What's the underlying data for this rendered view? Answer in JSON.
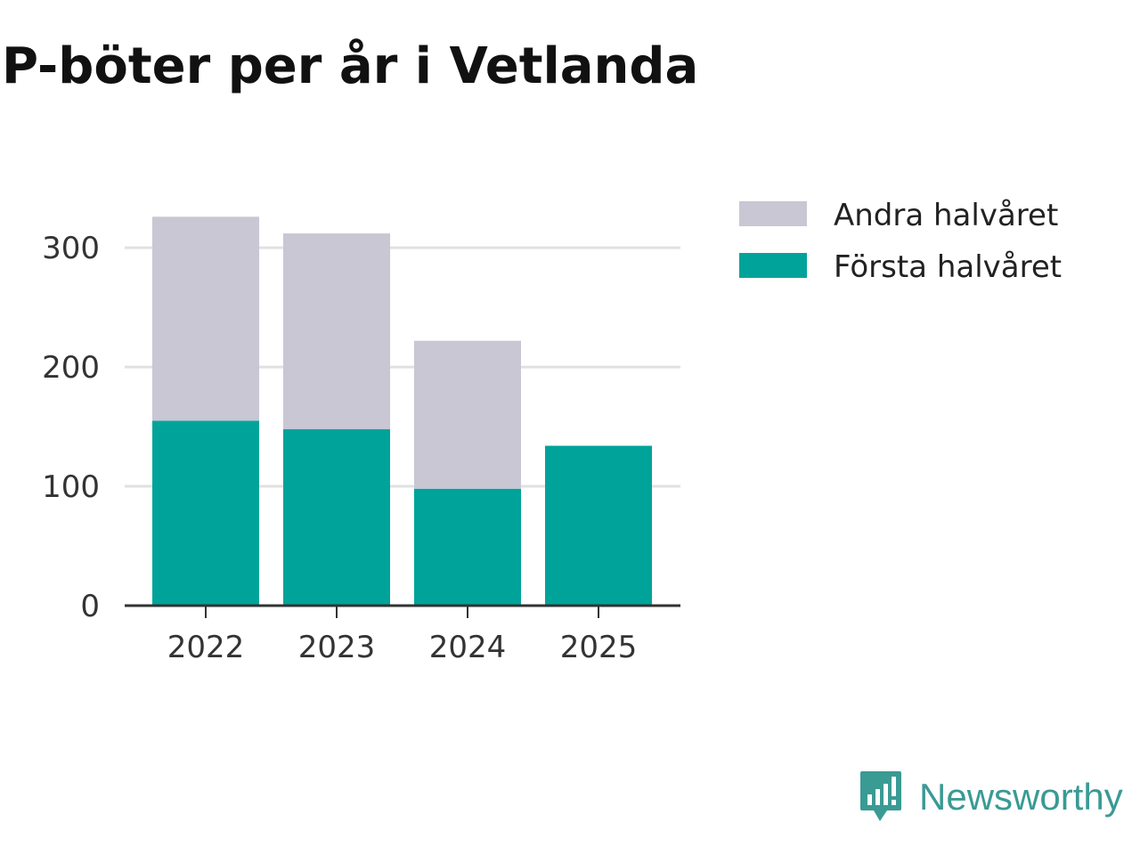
{
  "chart_data": {
    "type": "bar",
    "stacked": true,
    "title": "P-böter per år i Vetlanda",
    "categories": [
      "2022",
      "2023",
      "2024",
      "2025"
    ],
    "series": [
      {
        "name": "Första halvåret",
        "values": [
          155,
          148,
          98,
          134
        ],
        "color": "#00a39a"
      },
      {
        "name": "Andra halvåret",
        "values": [
          171,
          164,
          124,
          null
        ],
        "color": "#c8c7d3"
      }
    ],
    "ylim": [
      0,
      330
    ],
    "yticks": [
      0,
      100,
      200,
      300
    ],
    "grid": true,
    "legend": {
      "position": "top-right",
      "items": [
        "Andra halvåret",
        "Första halvåret"
      ]
    },
    "xlabel": "",
    "ylabel": ""
  },
  "branding": {
    "name": "Newsworthy",
    "icon": "newsworthy-logo-icon",
    "color": "#3a9a94"
  }
}
